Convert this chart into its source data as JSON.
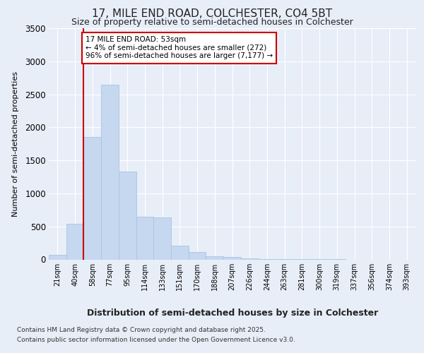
{
  "title_line1": "17, MILE END ROAD, COLCHESTER, CO4 5BT",
  "title_line2": "Size of property relative to semi-detached houses in Colchester",
  "xlabel": "Distribution of semi-detached houses by size in Colchester",
  "ylabel": "Number of semi-detached properties",
  "footer_line1": "Contains HM Land Registry data © Crown copyright and database right 2025.",
  "footer_line2": "Contains public sector information licensed under the Open Government Licence v3.0.",
  "annotation_title": "17 MILE END ROAD: 53sqm",
  "annotation_line1": "← 4% of semi-detached houses are smaller (272)",
  "annotation_line2": "96% of semi-detached houses are larger (7,177) →",
  "bar_labels": [
    "21sqm",
    "40sqm",
    "58sqm",
    "77sqm",
    "95sqm",
    "114sqm",
    "133sqm",
    "151sqm",
    "170sqm",
    "188sqm",
    "207sqm",
    "226sqm",
    "244sqm",
    "263sqm",
    "281sqm",
    "300sqm",
    "319sqm",
    "337sqm",
    "356sqm",
    "374sqm",
    "393sqm"
  ],
  "bar_values": [
    70,
    540,
    1850,
    2650,
    1330,
    650,
    640,
    210,
    110,
    50,
    40,
    15,
    10,
    5,
    3,
    2,
    1,
    0,
    0,
    0,
    0
  ],
  "bar_color": "#c5d8f0",
  "bar_edge_color": "#a8c4e0",
  "vline_color": "#cc0000",
  "vline_pos": 1.5,
  "ylim": [
    0,
    3500
  ],
  "yticks": [
    0,
    500,
    1000,
    1500,
    2000,
    2500,
    3000,
    3500
  ],
  "bg_color": "#e8eef8",
  "grid_color": "#ffffff",
  "annotation_box_facecolor": "#ffffff",
  "annotation_box_edgecolor": "#cc0000"
}
